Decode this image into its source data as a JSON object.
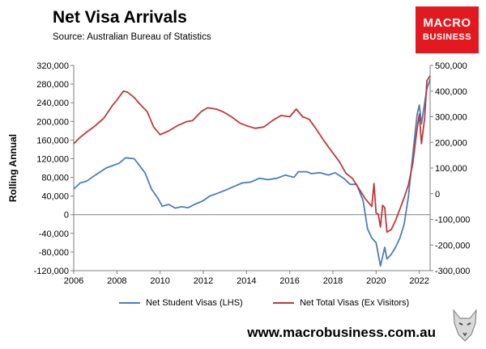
{
  "header": {
    "title": "Net Visa Arrivals",
    "source": "Source: Australian Bureau of Statistics"
  },
  "logo": {
    "line1": "MACRO",
    "line2": "BUSINESS",
    "color": "#e2191f"
  },
  "footer": {
    "url": "www.macrobusiness.com.au"
  },
  "chart_data": {
    "type": "line",
    "ylabel_left": "Rolling Annual",
    "y_left": {
      "min": -120000,
      "max": 320000,
      "ticks": [
        -120000,
        -80000,
        -40000,
        0,
        40000,
        80000,
        120000,
        160000,
        200000,
        240000,
        280000,
        320000
      ],
      "tick_labels": [
        "-120,000",
        "-80,000",
        "-40,000",
        "0",
        "40,000",
        "80,000",
        "120,000",
        "160,000",
        "200,000",
        "240,000",
        "280,000",
        "320,000"
      ]
    },
    "y_right": {
      "min": -300000,
      "max": 500000,
      "ticks": [
        -300000,
        -200000,
        -100000,
        0,
        100000,
        200000,
        300000,
        400000,
        500000
      ],
      "tick_labels": [
        "-300,000",
        "-200,000",
        "-100,000",
        "0",
        "100,000",
        "200,000",
        "300,000",
        "400,000",
        "500,000"
      ]
    },
    "x": {
      "min": 2006,
      "max": 2022.5,
      "ticks": [
        2006,
        2008,
        2010,
        2012,
        2014,
        2016,
        2018,
        2020,
        2022
      ],
      "tick_labels": [
        "2006",
        "2008",
        "2010",
        "2012",
        "2014",
        "2016",
        "2018",
        "2020",
        "2022"
      ]
    },
    "series": [
      {
        "name": "Net Student Visas (LHS)",
        "axis": "left",
        "color": "#4a7ebb",
        "points": [
          [
            2006.0,
            55000
          ],
          [
            2006.3,
            68000
          ],
          [
            2006.6,
            72000
          ],
          [
            2007.0,
            85000
          ],
          [
            2007.5,
            100000
          ],
          [
            2007.9,
            107000
          ],
          [
            2008.1,
            110000
          ],
          [
            2008.4,
            122000
          ],
          [
            2008.8,
            120000
          ],
          [
            2009.0,
            108000
          ],
          [
            2009.3,
            90000
          ],
          [
            2009.6,
            55000
          ],
          [
            2009.9,
            35000
          ],
          [
            2010.1,
            18000
          ],
          [
            2010.4,
            22000
          ],
          [
            2010.7,
            14000
          ],
          [
            2011.0,
            17000
          ],
          [
            2011.3,
            15000
          ],
          [
            2011.6,
            22000
          ],
          [
            2012.0,
            30000
          ],
          [
            2012.3,
            40000
          ],
          [
            2012.6,
            45000
          ],
          [
            2013.0,
            52000
          ],
          [
            2013.4,
            60000
          ],
          [
            2013.8,
            68000
          ],
          [
            2014.2,
            70000
          ],
          [
            2014.6,
            78000
          ],
          [
            2015.0,
            75000
          ],
          [
            2015.4,
            78000
          ],
          [
            2015.8,
            85000
          ],
          [
            2016.2,
            80000
          ],
          [
            2016.4,
            92000
          ],
          [
            2016.8,
            92000
          ],
          [
            2017.0,
            88000
          ],
          [
            2017.4,
            90000
          ],
          [
            2017.8,
            85000
          ],
          [
            2018.1,
            90000
          ],
          [
            2018.5,
            78000
          ],
          [
            2018.8,
            65000
          ],
          [
            2019.1,
            65000
          ],
          [
            2019.4,
            30000
          ],
          [
            2019.6,
            -30000
          ],
          [
            2019.8,
            -50000
          ],
          [
            2020.0,
            -60000
          ],
          [
            2020.2,
            -110000
          ],
          [
            2020.4,
            -70000
          ],
          [
            2020.5,
            -95000
          ],
          [
            2020.7,
            -85000
          ],
          [
            2020.9,
            -70000
          ],
          [
            2021.1,
            -50000
          ],
          [
            2021.3,
            -20000
          ],
          [
            2021.5,
            40000
          ],
          [
            2021.7,
            130000
          ],
          [
            2021.9,
            215000
          ],
          [
            2022.0,
            235000
          ],
          [
            2022.1,
            195000
          ],
          [
            2022.25,
            240000
          ],
          [
            2022.35,
            270000
          ],
          [
            2022.5,
            290000
          ]
        ]
      },
      {
        "name": "Net Total Visas (Ex Visitors)",
        "axis": "right",
        "color": "#c0393b",
        "points": [
          [
            2006.0,
            195000
          ],
          [
            2006.3,
            220000
          ],
          [
            2006.6,
            240000
          ],
          [
            2007.0,
            265000
          ],
          [
            2007.4,
            295000
          ],
          [
            2007.8,
            345000
          ],
          [
            2008.0,
            365000
          ],
          [
            2008.3,
            400000
          ],
          [
            2008.5,
            395000
          ],
          [
            2008.8,
            375000
          ],
          [
            2009.0,
            355000
          ],
          [
            2009.4,
            320000
          ],
          [
            2009.7,
            260000
          ],
          [
            2010.0,
            230000
          ],
          [
            2010.4,
            245000
          ],
          [
            2010.8,
            265000
          ],
          [
            2011.2,
            280000
          ],
          [
            2011.5,
            285000
          ],
          [
            2011.9,
            320000
          ],
          [
            2012.2,
            335000
          ],
          [
            2012.6,
            330000
          ],
          [
            2012.9,
            320000
          ],
          [
            2013.3,
            300000
          ],
          [
            2013.7,
            275000
          ],
          [
            2014.0,
            265000
          ],
          [
            2014.4,
            255000
          ],
          [
            2014.8,
            260000
          ],
          [
            2015.2,
            285000
          ],
          [
            2015.6,
            305000
          ],
          [
            2016.0,
            300000
          ],
          [
            2016.3,
            330000
          ],
          [
            2016.6,
            300000
          ],
          [
            2016.9,
            290000
          ],
          [
            2017.2,
            255000
          ],
          [
            2017.6,
            205000
          ],
          [
            2017.9,
            170000
          ],
          [
            2018.3,
            125000
          ],
          [
            2018.6,
            80000
          ],
          [
            2018.9,
            60000
          ],
          [
            2019.2,
            20000
          ],
          [
            2019.5,
            -20000
          ],
          [
            2019.8,
            -50000
          ],
          [
            2019.9,
            40000
          ],
          [
            2020.0,
            -75000
          ],
          [
            2020.1,
            -80000
          ],
          [
            2020.2,
            -130000
          ],
          [
            2020.3,
            -45000
          ],
          [
            2020.4,
            -55000
          ],
          [
            2020.5,
            -150000
          ],
          [
            2020.7,
            -140000
          ],
          [
            2020.9,
            -105000
          ],
          [
            2021.1,
            -60000
          ],
          [
            2021.3,
            -15000
          ],
          [
            2021.5,
            35000
          ],
          [
            2021.7,
            120000
          ],
          [
            2021.9,
            255000
          ],
          [
            2022.0,
            310000
          ],
          [
            2022.1,
            195000
          ],
          [
            2022.25,
            295000
          ],
          [
            2022.35,
            440000
          ],
          [
            2022.5,
            460000
          ]
        ]
      }
    ],
    "legend_position": "bottom",
    "grid": false
  }
}
